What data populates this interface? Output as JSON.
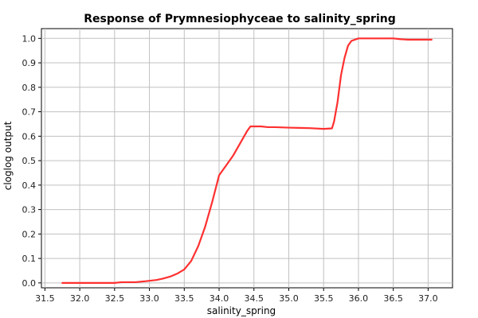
{
  "chart_data": {
    "type": "line",
    "title": "Response of Prymnesiophyceae to salinity_spring",
    "xlabel": "salinity_spring",
    "ylabel": "cloglog output",
    "xlim": [
      31.45,
      37.35
    ],
    "ylim": [
      -0.02,
      1.04
    ],
    "x_ticks": [
      31.5,
      32.0,
      32.5,
      33.0,
      33.5,
      34.0,
      34.5,
      35.0,
      35.5,
      36.0,
      36.5,
      37.0
    ],
    "x_tick_labels": [
      "31.5",
      "32.0",
      "32.5",
      "33.0",
      "33.5",
      "34.0",
      "34.5",
      "35.0",
      "35.5",
      "36.0",
      "36.5",
      "37.0"
    ],
    "y_ticks": [
      0.0,
      0.1,
      0.2,
      0.3,
      0.4,
      0.5,
      0.6,
      0.7,
      0.8,
      0.9,
      1.0
    ],
    "y_tick_labels": [
      "0.0",
      "0.1",
      "0.2",
      "0.3",
      "0.4",
      "0.5",
      "0.6",
      "0.7",
      "0.8",
      "0.9",
      "1.0"
    ],
    "grid": true,
    "line_color": "#ff3030",
    "series": [
      {
        "x": [
          31.75,
          32.0,
          32.25,
          32.5,
          32.6,
          32.8,
          32.95,
          33.1,
          33.2,
          33.3,
          33.4,
          33.5,
          33.6,
          33.7,
          33.8,
          33.9,
          34.0,
          34.05,
          34.1,
          34.2,
          34.3,
          34.4,
          34.45,
          34.6,
          34.7,
          34.8,
          35.0,
          35.3,
          35.5,
          35.62,
          35.65,
          35.7,
          35.75,
          35.8,
          35.85,
          35.9,
          36.0,
          36.5,
          36.6,
          36.7,
          37.05
        ],
        "y": [
          0.0,
          0.0,
          0.0,
          0.0,
          0.003,
          0.003,
          0.007,
          0.012,
          0.018,
          0.026,
          0.038,
          0.055,
          0.09,
          0.15,
          0.23,
          0.33,
          0.44,
          0.46,
          0.48,
          0.52,
          0.57,
          0.62,
          0.64,
          0.64,
          0.637,
          0.637,
          0.635,
          0.633,
          0.63,
          0.632,
          0.66,
          0.74,
          0.85,
          0.92,
          0.97,
          0.99,
          1.0,
          1.0,
          0.997,
          0.995,
          0.995
        ]
      }
    ]
  }
}
